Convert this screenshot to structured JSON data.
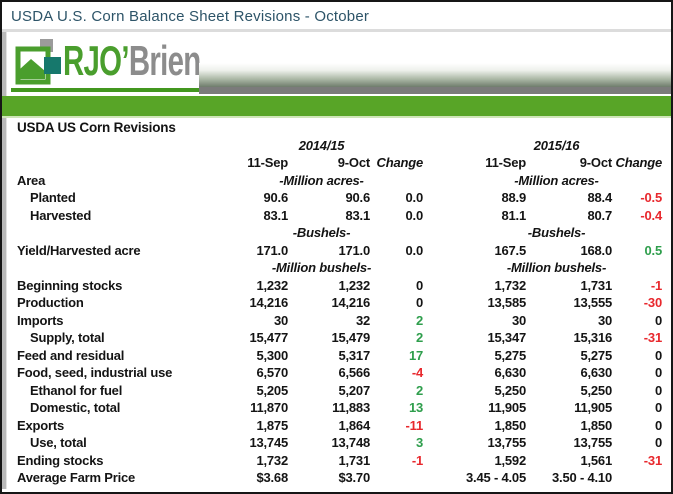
{
  "window": {
    "title": "USDA U.S. Corn Balance Sheet Revisions - October"
  },
  "brand": {
    "green": "RJO’",
    "gray": "Brien"
  },
  "colors": {
    "accent_green": "#58a527",
    "logo_green": "#4a9e2d",
    "logo_teal": "#16786c",
    "logo_gray": "#9b9b9b",
    "positive": "#2e9e4c",
    "negative": "#e8282d",
    "title_text": "#2d5468"
  },
  "report": {
    "title": "USDA US Corn Revisions",
    "groups": [
      {
        "label": "2014/15"
      },
      {
        "label": "2015/16"
      }
    ],
    "col_headers": [
      "11-Sep",
      "9-Oct",
      "Change"
    ],
    "rows": [
      {
        "label": "Area",
        "unit1": "-Million acres-",
        "unit2": "-Million acres-"
      },
      {
        "label": "Planted",
        "indent": true,
        "g1": [
          "90.6",
          "90.6",
          "0.0"
        ],
        "g2": [
          "88.9",
          "88.4",
          "-0.5"
        ]
      },
      {
        "label": "Harvested",
        "indent": true,
        "g1": [
          "83.1",
          "83.1",
          "0.0"
        ],
        "g2": [
          "81.1",
          "80.7",
          "-0.4"
        ]
      },
      {
        "label": "",
        "unit1": "-Bushels-",
        "unit2": "-Bushels-"
      },
      {
        "label": "Yield/Harvested acre",
        "g1": [
          "171.0",
          "171.0",
          "0.0"
        ],
        "g2": [
          "167.5",
          "168.0",
          "0.5"
        ]
      },
      {
        "label": "",
        "unit1": "-Million bushels-",
        "unit2": "-Million bushels-"
      },
      {
        "label": "Beginning stocks",
        "g1": [
          "1,232",
          "1,232",
          "0"
        ],
        "g2": [
          "1,732",
          "1,731",
          "-1"
        ]
      },
      {
        "label": "Production",
        "g1": [
          "14,216",
          "14,216",
          "0"
        ],
        "g2": [
          "13,585",
          "13,555",
          "-30"
        ]
      },
      {
        "label": "Imports",
        "g1": [
          "30",
          "32",
          "2"
        ],
        "g2": [
          "30",
          "30",
          "0"
        ]
      },
      {
        "label": "Supply, total",
        "indent": true,
        "g1": [
          "15,477",
          "15,479",
          "2"
        ],
        "g2": [
          "15,347",
          "15,316",
          "-31"
        ]
      },
      {
        "label": "Feed and residual",
        "g1": [
          "5,300",
          "5,317",
          "17"
        ],
        "g2": [
          "5,275",
          "5,275",
          "0"
        ]
      },
      {
        "label": "Food, seed, industrial use",
        "g1": [
          "6,570",
          "6,566",
          "-4"
        ],
        "g2": [
          "6,630",
          "6,630",
          "0"
        ]
      },
      {
        "label": "Ethanol for fuel",
        "indent": true,
        "g1": [
          "5,205",
          "5,207",
          "2"
        ],
        "g2": [
          "5,250",
          "5,250",
          "0"
        ]
      },
      {
        "label": "Domestic, total",
        "indent": true,
        "g1": [
          "11,870",
          "11,883",
          "13"
        ],
        "g2": [
          "11,905",
          "11,905",
          "0"
        ]
      },
      {
        "label": "Exports",
        "g1": [
          "1,875",
          "1,864",
          "-11"
        ],
        "g2": [
          "1,850",
          "1,850",
          "0"
        ]
      },
      {
        "label": "Use, total",
        "indent": true,
        "g1": [
          "13,745",
          "13,748",
          "3"
        ],
        "g2": [
          "13,755",
          "13,755",
          "0"
        ]
      },
      {
        "label": "Ending stocks",
        "g1": [
          "1,732",
          "1,731",
          "-1"
        ],
        "g2": [
          "1,592",
          "1,561",
          "-31"
        ]
      },
      {
        "label": "Average Farm Price",
        "g1": [
          "$3.68",
          "$3.70",
          ""
        ],
        "g2": [
          "3.45 - 4.05",
          "3.50 - 4.10",
          ""
        ]
      }
    ]
  }
}
